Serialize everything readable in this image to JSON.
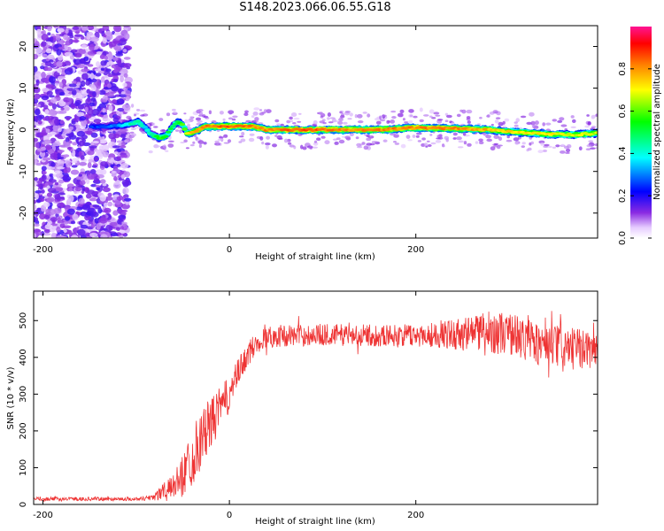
{
  "title": "S148.2023.066.06.55.G18",
  "chart_data": [
    {
      "type": "heatmap",
      "xlabel": "Height of straight line (km)",
      "ylabel": "Frequency (Hz)",
      "xlim": [
        -210,
        395
      ],
      "ylim": [
        -26,
        25
      ],
      "x_ticks": [
        -200,
        0,
        200
      ],
      "y_ticks": [
        -20,
        -10,
        0,
        10,
        20
      ],
      "colorbar": {
        "label": "Normalized spectral amplitude",
        "range": [
          0,
          1
        ],
        "ticks": [
          0.0,
          0.2,
          0.4,
          0.6,
          0.8
        ],
        "colormap": [
          "#ff1493",
          "#ff0000",
          "#ff7f00",
          "#ffff00",
          "#00ff00",
          "#00ffff",
          "#0000ff",
          "#8a2be2",
          "#ffffff"
        ]
      },
      "noise_region": {
        "x_range": [
          -210,
          -108
        ],
        "y_range": [
          -26,
          25
        ]
      },
      "ridge": [
        {
          "x": -148,
          "y": 0.8,
          "amp": 0.25
        },
        {
          "x": -130,
          "y": 0.8,
          "amp": 0.3
        },
        {
          "x": -115,
          "y": 1.0,
          "amp": 0.35
        },
        {
          "x": -105,
          "y": 1.5,
          "amp": 0.45
        },
        {
          "x": -98,
          "y": 2.0,
          "amp": 0.5
        },
        {
          "x": -90,
          "y": 0.5,
          "amp": 0.4
        },
        {
          "x": -85,
          "y": -1.0,
          "amp": 0.45
        },
        {
          "x": -75,
          "y": -2.0,
          "amp": 0.6
        },
        {
          "x": -68,
          "y": -1.5,
          "amp": 0.55
        },
        {
          "x": -60,
          "y": 1.0,
          "amp": 0.5
        },
        {
          "x": -55,
          "y": 2.0,
          "amp": 0.55
        },
        {
          "x": -50,
          "y": 1.0,
          "amp": 0.6
        },
        {
          "x": -45,
          "y": -1.0,
          "amp": 0.75
        },
        {
          "x": -38,
          "y": -0.5,
          "amp": 0.8
        },
        {
          "x": -25,
          "y": 0.8,
          "amp": 0.85
        },
        {
          "x": 0,
          "y": 0.8,
          "amp": 0.9
        },
        {
          "x": 25,
          "y": 0.8,
          "amp": 0.85
        },
        {
          "x": 40,
          "y": 0.0,
          "amp": 0.85
        },
        {
          "x": 80,
          "y": 0.0,
          "amp": 0.9
        },
        {
          "x": 120,
          "y": 0.0,
          "amp": 0.85
        },
        {
          "x": 160,
          "y": 0.0,
          "amp": 0.85
        },
        {
          "x": 200,
          "y": 0.5,
          "amp": 0.85
        },
        {
          "x": 240,
          "y": 0.3,
          "amp": 0.85
        },
        {
          "x": 280,
          "y": 0.0,
          "amp": 0.8
        },
        {
          "x": 310,
          "y": -0.6,
          "amp": 0.75
        },
        {
          "x": 340,
          "y": -1.0,
          "amp": 0.75
        },
        {
          "x": 370,
          "y": -1.2,
          "amp": 0.7
        },
        {
          "x": 395,
          "y": -0.8,
          "amp": 0.7
        }
      ]
    },
    {
      "type": "line",
      "xlabel": "Height of straight line (km)",
      "ylabel": "SNR (10 * v/v)",
      "xlim": [
        -210,
        395
      ],
      "ylim": [
        0,
        580
      ],
      "x_ticks": [
        -200,
        0,
        200
      ],
      "y_ticks": [
        0,
        100,
        200,
        300,
        400,
        500
      ],
      "series": [
        {
          "color": "#ee3333",
          "x": [
            -210,
            -150,
            -100,
            -85,
            -75,
            -60,
            -50,
            -40,
            -30,
            -20,
            -10,
            0,
            10,
            20,
            30,
            40,
            60,
            80,
            100,
            150,
            200,
            250,
            270,
            300,
            340,
            395
          ],
          "y": [
            15,
            15,
            15,
            18,
            30,
            50,
            80,
            130,
            180,
            220,
            260,
            300,
            360,
            410,
            440,
            455,
            460,
            460,
            462,
            460,
            460,
            465,
            470,
            465,
            430,
            420
          ],
          "noise_amplitude": [
            5,
            5,
            5,
            8,
            20,
            30,
            60,
            80,
            80,
            70,
            60,
            50,
            40,
            35,
            30,
            30,
            30,
            30,
            30,
            30,
            30,
            45,
            55,
            60,
            60,
            50
          ]
        }
      ]
    }
  ]
}
